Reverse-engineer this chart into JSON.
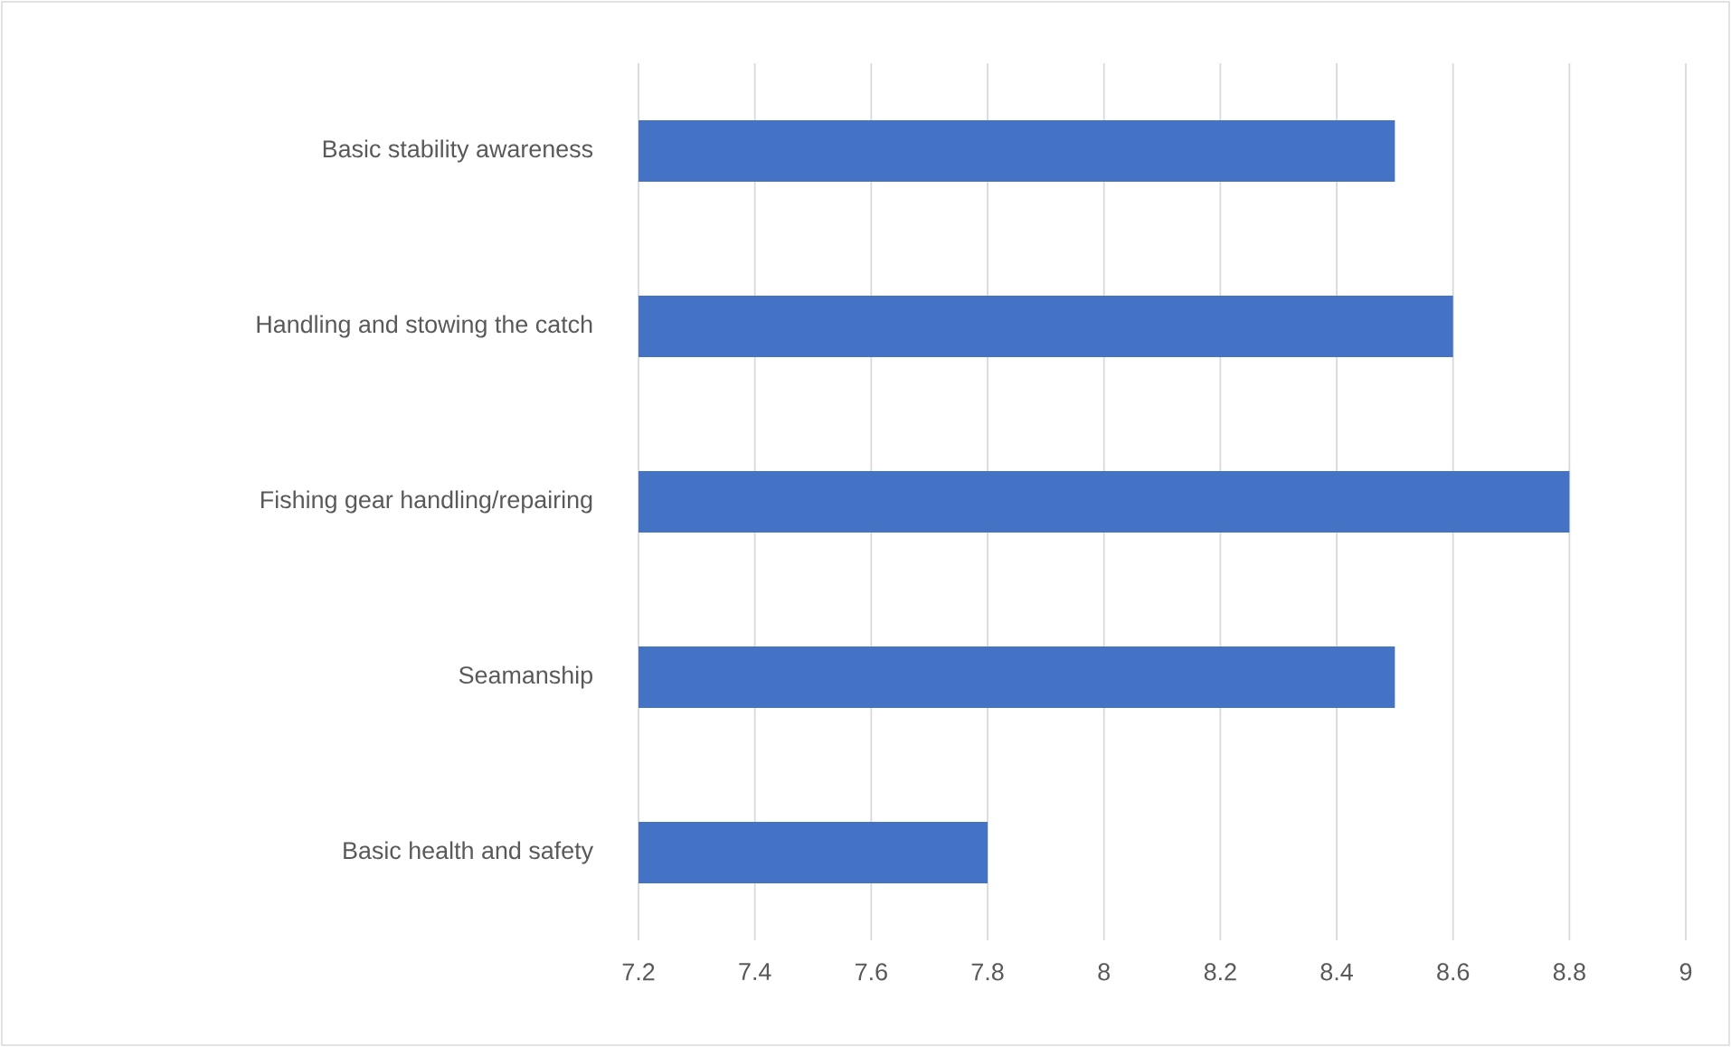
{
  "chart_data": {
    "type": "bar",
    "orientation": "horizontal",
    "categories": [
      "Basic stability awareness",
      "Handling and stowing the catch",
      "Fishing gear handling/repairing",
      "Seamanship",
      "Basic health and safety"
    ],
    "values": [
      8.5,
      8.6,
      8.8,
      8.5,
      7.8
    ],
    "color": "#4472c4",
    "xlim": [
      7.2,
      9
    ],
    "xticks": [
      7.2,
      7.4,
      7.6,
      7.8,
      8,
      8.2,
      8.4,
      8.6,
      8.8,
      9
    ],
    "grid": "x"
  }
}
